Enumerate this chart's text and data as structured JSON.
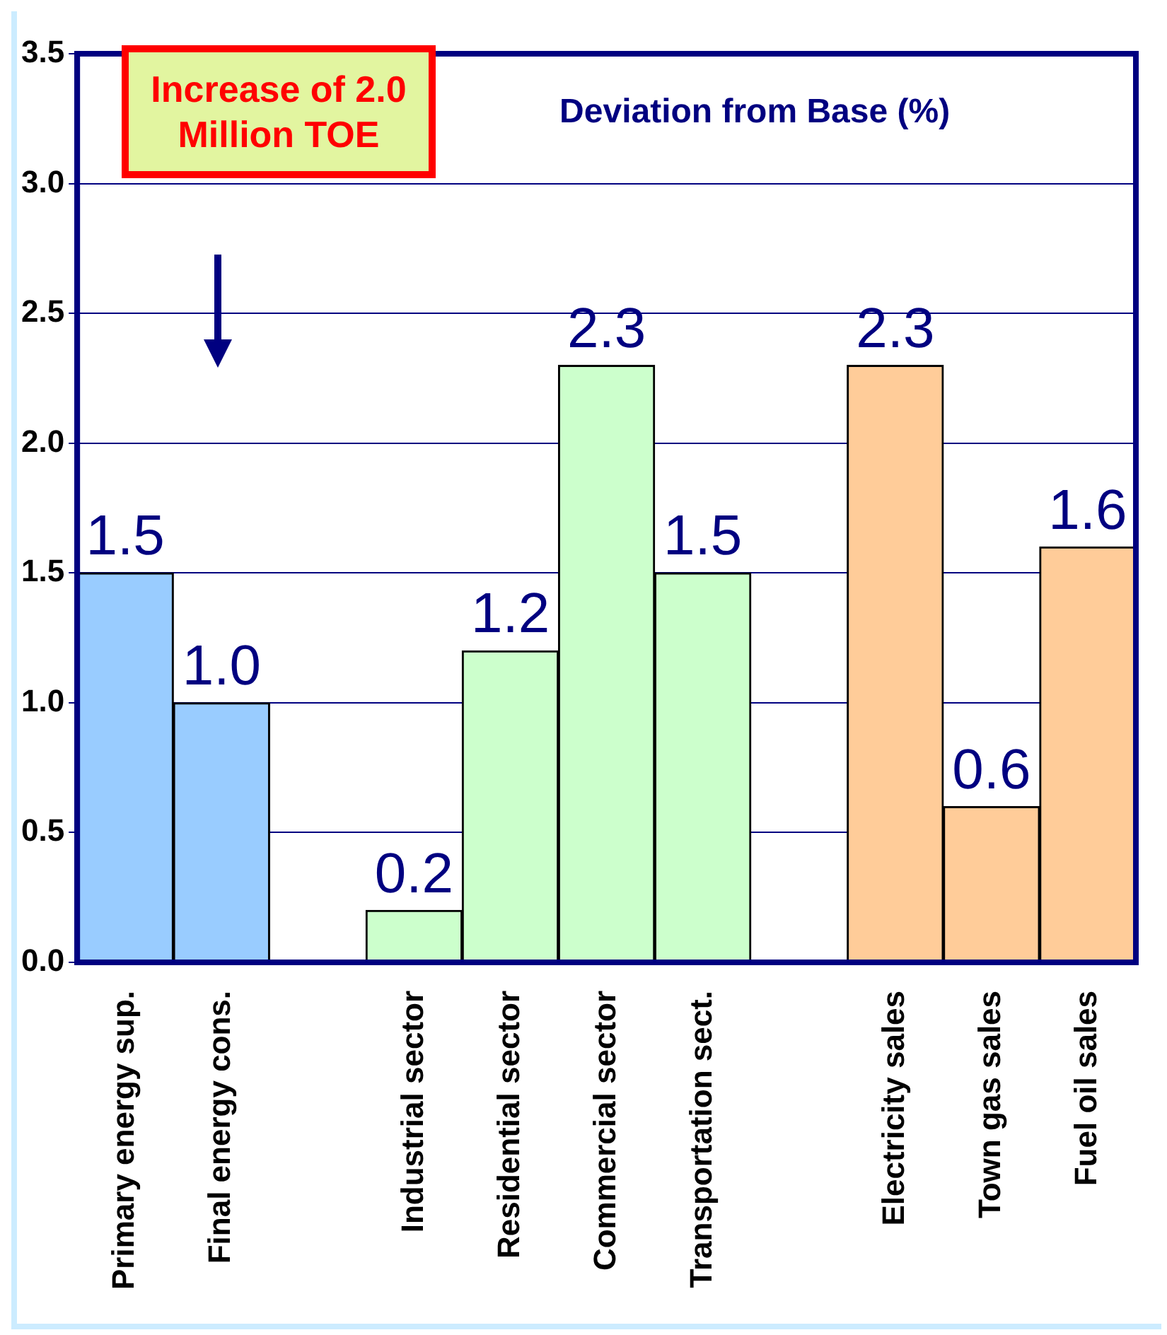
{
  "chart_data": {
    "type": "bar",
    "title": "Deviation from Base (%)",
    "categories": [
      "Primary energy sup.",
      "Final energy cons.",
      null,
      "Industrial sector",
      "Residential sector",
      "Commercial sector",
      "Transportation sect.",
      null,
      "Electricity sales",
      "Town gas sales",
      "Fuel oil sales"
    ],
    "values": [
      1.5,
      1.0,
      null,
      0.2,
      1.2,
      2.3,
      1.5,
      null,
      2.3,
      0.6,
      1.6
    ],
    "colors": [
      "#99ccff",
      "#99ccff",
      null,
      "#ccffcc",
      "#ccffcc",
      "#ccffcc",
      "#ccffcc",
      null,
      "#ffcc99",
      "#ffcc99",
      "#ffcc99"
    ],
    "ylim": [
      0,
      3.5
    ],
    "yticks": [
      {
        "value": 0,
        "label": "0.0"
      },
      {
        "value": 0.5,
        "label": "0.5"
      },
      {
        "value": 1,
        "label": "1.0"
      },
      {
        "value": 1.5,
        "label": "1.5"
      },
      {
        "value": 2,
        "label": "2.0"
      },
      {
        "value": 2.5,
        "label": "2.5"
      },
      {
        "value": 3,
        "label": "3.0"
      },
      {
        "value": 3.5,
        "label": "3.5"
      }
    ],
    "value_labels": [
      "1.5",
      "1.0",
      null,
      "0.2",
      "1.2",
      "2.3",
      "1.5",
      null,
      "2.3",
      "0.6",
      "1.6"
    ],
    "grid": "y",
    "legend": false,
    "annotations": [
      "Increase of 2.0 Million TOE"
    ]
  }
}
